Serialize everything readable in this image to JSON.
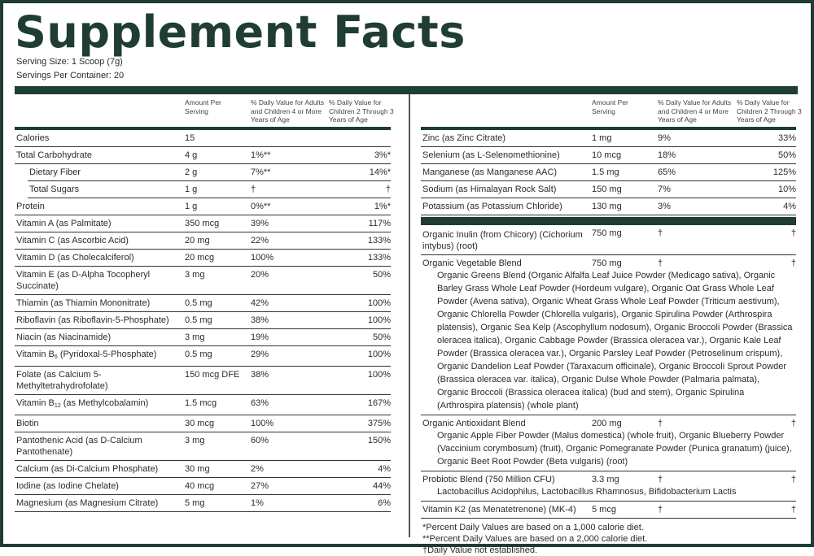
{
  "title": "Supplement Facts",
  "serving_size": "Serving Size: 1 Scoop (7g)",
  "servings_per_container": "Servings Per Container: 20",
  "headers": {
    "amount": "Amount Per Serving",
    "dv_adult": "% Daily Value for Adults and Children 4 or More Years of Age",
    "dv_child": "% Daily Value for Children 2 Through 3 Years of Age"
  },
  "colors": {
    "brand": "#1f3d33"
  },
  "left_rows": [
    {
      "name": "Calories",
      "amount": "15",
      "dv1": "",
      "dv2": ""
    },
    {
      "name": "Total Carbohydrate",
      "amount": "4 g",
      "dv1": "1%**",
      "dv2": "3%*"
    },
    {
      "name": "Dietary Fiber",
      "amount": "2 g",
      "dv1": "7%**",
      "dv2": "14%*",
      "indent": true
    },
    {
      "name": "Total Sugars",
      "amount": "1 g",
      "dv1": "†",
      "dv2": "†",
      "indent": true
    },
    {
      "name": "Protein",
      "amount": "1 g",
      "dv1": "0%**",
      "dv2": "1%*"
    },
    {
      "name": "Vitamin A (as Palmitate)",
      "amount": "350 mcg",
      "dv1": "39%",
      "dv2": "117%"
    },
    {
      "name": "Vitamin C (as Ascorbic Acid)",
      "amount": "20 mg",
      "dv1": "22%",
      "dv2": "133%"
    },
    {
      "name": "Vitamin D (as Cholecalciferol)",
      "amount": "20 mcg",
      "dv1": "100%",
      "dv2": "133%"
    },
    {
      "name": "Vitamin E (as D-Alpha Tocopheryl Succinate)",
      "amount": "3 mg",
      "dv1": "20%",
      "dv2": "50%"
    },
    {
      "name": "Thiamin (as Thiamin Mononitrate)",
      "amount": "0.5 mg",
      "dv1": "42%",
      "dv2": "100%"
    },
    {
      "name": "Riboflavin (as Riboflavin-5-Phosphate)",
      "amount": "0.5 mg",
      "dv1": "38%",
      "dv2": "100%"
    },
    {
      "name": "Niacin (as Niacinamide)",
      "amount": "3 mg",
      "dv1": "19%",
      "dv2": "50%"
    },
    {
      "name": "Vitamin B",
      "sub": "6",
      "suffix": " (Pyridoxal-5-Phosphate)",
      "amount": "0.5 mg",
      "dv1": "29%",
      "dv2": "100%"
    },
    {
      "name": "Folate (as Calcium 5-Methyltetrahydrofolate)",
      "amount": "150 mcg DFE",
      "dv1": "38%",
      "dv2": "100%"
    },
    {
      "name": "Vitamin B",
      "sub": "12",
      "suffix": " (as Methylcobalamin)",
      "amount": "1.5 mcg",
      "dv1": "63%",
      "dv2": "167%"
    },
    {
      "name": "Biotin",
      "amount": "30 mcg",
      "dv1": "100%",
      "dv2": "375%"
    },
    {
      "name": "Pantothenic Acid (as D-Calcium Pantothenate)",
      "amount": "3 mg",
      "dv1": "60%",
      "dv2": "150%"
    },
    {
      "name": "Calcium (as Di-Calcium Phosphate)",
      "amount": "30 mg",
      "dv1": "2%",
      "dv2": "4%"
    },
    {
      "name": "Iodine (as Iodine Chelate)",
      "amount": "40 mcg",
      "dv1": "27%",
      "dv2": "44%"
    },
    {
      "name": "Magnesium (as Magnesium Citrate)",
      "amount": "5 mg",
      "dv1": "1%",
      "dv2": "6%"
    }
  ],
  "right_rows": [
    {
      "name": "Zinc (as Zinc Citrate)",
      "amount": "1 mg",
      "dv1": "9%",
      "dv2": "33%"
    },
    {
      "name": "Selenium (as L-Selenomethionine)",
      "amount": "10 mcg",
      "dv1": "18%",
      "dv2": "50%"
    },
    {
      "name": "Manganese (as Manganese AAC)",
      "amount": "1.5 mg",
      "dv1": "65%",
      "dv2": "125%"
    },
    {
      "name": "Sodium (as Himalayan Rock Salt)",
      "amount": "150 mg",
      "dv1": "7%",
      "dv2": "10%"
    },
    {
      "name": "Potassium (as Potassium Chloride)",
      "amount": "130 mg",
      "dv1": "3%",
      "dv2": "4%"
    }
  ],
  "blend_rows": [
    {
      "name": "Organic Inulin (from Chicory) (Cichorium intybus) (root)",
      "amount": "750 mg",
      "dv1": "†",
      "dv2": "†"
    },
    {
      "name": "Organic Vegetable Blend",
      "amount": "750 mg",
      "dv1": "†",
      "dv2": "†",
      "desc": "Organic Greens Blend (Organic Alfalfa Leaf Juice Powder (Medicago sativa), Organic Barley Grass Whole Leaf Powder (Hordeum vulgare), Organic Oat Grass Whole Leaf Powder (Avena sativa), Organic Wheat Grass Whole Leaf Powder (Triticum aestivum), Organic Chlorella Powder (Chlorella vulgaris), Organic Spirulina Powder (Arthrospira platensis), Organic Sea Kelp (Ascophyllum nodosum), Organic Broccoli Powder (Brassica oleracea italica), Organic Cabbage Powder (Brassica oleracea var.), Organic Kale Leaf Powder (Brassica oleracea var.), Organic Parsley Leaf Powder (Petroselinum crispum), Organic Dandelion Leaf Powder (Taraxacum officinale), Organic Broccoli Sprout Powder (Brassica oleracea var. italica), Organic Dulse Whole Powder (Palmaria palmata), Organic Broccoli (Brassica oleracea italica) (bud and stem), Organic Spirulina (Arthrospira platensis) (whole plant)"
    },
    {
      "name": "Organic Antioxidant Blend",
      "amount": "200 mg",
      "dv1": "†",
      "dv2": "†",
      "desc": "Organic Apple Fiber Powder (Malus domestica) (whole fruit), Organic Blueberry Powder (Vaccinium corymbosum) (fruit), Organic Pomegranate Powder (Punica granatum) (juice), Organic Beet Root Powder (Beta vulgaris) (root)"
    },
    {
      "name": "Probiotic Blend (750 Million CFU)",
      "amount": "3.3 mg",
      "dv1": "†",
      "dv2": "†",
      "desc": "Lactobacillus Acidophilus, Lactobacillus Rhamnosus, Bifidobacterium Lactis"
    },
    {
      "name": "Vitamin K2 (as Menatetrenone) (MK-4)",
      "amount": "5 mcg",
      "dv1": "†",
      "dv2": "†"
    }
  ],
  "footnotes": [
    "*Percent Daily Values are based on a 1,000 calorie diet.",
    "**Percent Daily Values are based on a 2,000 calorie diet.",
    "†Daily Value not established."
  ]
}
